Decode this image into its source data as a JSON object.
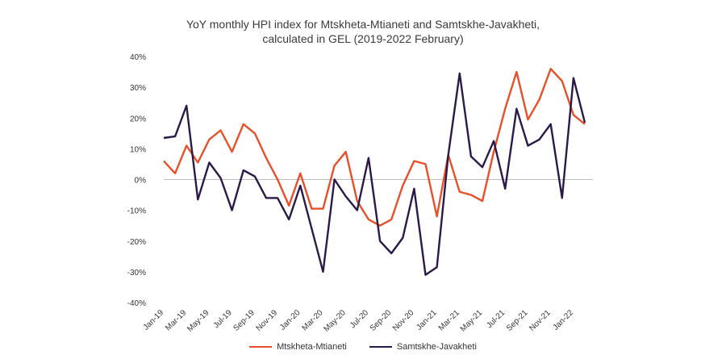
{
  "colors": {
    "mtskheta": "#e8502a",
    "samtskhe": "#2a1a4a",
    "axis": "#bfbfbf",
    "text": "#333333"
  },
  "chart_data": {
    "type": "line",
    "title_line1": "YoY monthly HPI index for Mtskheta-Mtianeti and Samtskhe-Javakheti,",
    "title_line2": "calculated in GEL (2019-2022 February)",
    "xlabel": "",
    "ylabel": "",
    "ylim": [
      -40,
      40
    ],
    "y_ticks": [
      "40%",
      "30%",
      "20%",
      "10%",
      "0%",
      "-10%",
      "-20%",
      "-30%",
      "-40%"
    ],
    "grid": false,
    "legend_position": "bottom",
    "categories": [
      "Jan-19",
      "Feb-19",
      "Mar-19",
      "Apr-19",
      "May-19",
      "Jun-19",
      "Jul-19",
      "Aug-19",
      "Sep-19",
      "Oct-19",
      "Nov-19",
      "Dec-19",
      "Jan-20",
      "Feb-20",
      "Mar-20",
      "Apr-20",
      "May-20",
      "Jun-20",
      "Jul-20",
      "Aug-20",
      "Sep-20",
      "Oct-20",
      "Nov-20",
      "Dec-20",
      "Jan-21",
      "Feb-21",
      "Mar-21",
      "Apr-21",
      "May-21",
      "Jun-21",
      "Jul-21",
      "Aug-21",
      "Sep-21",
      "Oct-21",
      "Nov-21",
      "Dec-21",
      "Jan-22",
      "Feb-22"
    ],
    "x_tick_labels": [
      "Jan-19",
      "Mar-19",
      "May-19",
      "Jul-19",
      "Sep-19",
      "Nov-19",
      "Jan-20",
      "Mar-20",
      "May-20",
      "Jul-20",
      "Sep-20",
      "Nov-20",
      "Jan-21",
      "Mar-21",
      "May-21",
      "Jul-21",
      "Sep-21",
      "Nov-21",
      "Jan-22"
    ],
    "series": [
      {
        "name": "Mtskheta-Mtianeti",
        "color_key": "mtskheta",
        "values": [
          6,
          2,
          11,
          5.5,
          13,
          16,
          9,
          18,
          15,
          7,
          0,
          -8.5,
          2,
          -9.5,
          -9.5,
          4.5,
          9,
          -7,
          -13,
          -15,
          -13,
          -2,
          6,
          5,
          -12,
          8,
          -4,
          -5,
          -7,
          9,
          23,
          35,
          19.5,
          26,
          36,
          32,
          21,
          18
        ]
      },
      {
        "name": "Samtskhe-Javakheti",
        "color_key": "samtskhe",
        "values": [
          13.5,
          14,
          24,
          -6.5,
          5.5,
          0.5,
          -10,
          3,
          1,
          -6,
          -6,
          -13,
          -2,
          -16,
          -30,
          0,
          -5.5,
          -10,
          7,
          -20,
          -24,
          -19,
          -3,
          -31,
          -28.5,
          8,
          34.5,
          7.5,
          4,
          12.5,
          -3,
          23,
          11,
          13,
          18,
          -6,
          33,
          18.5
        ]
      }
    ]
  }
}
